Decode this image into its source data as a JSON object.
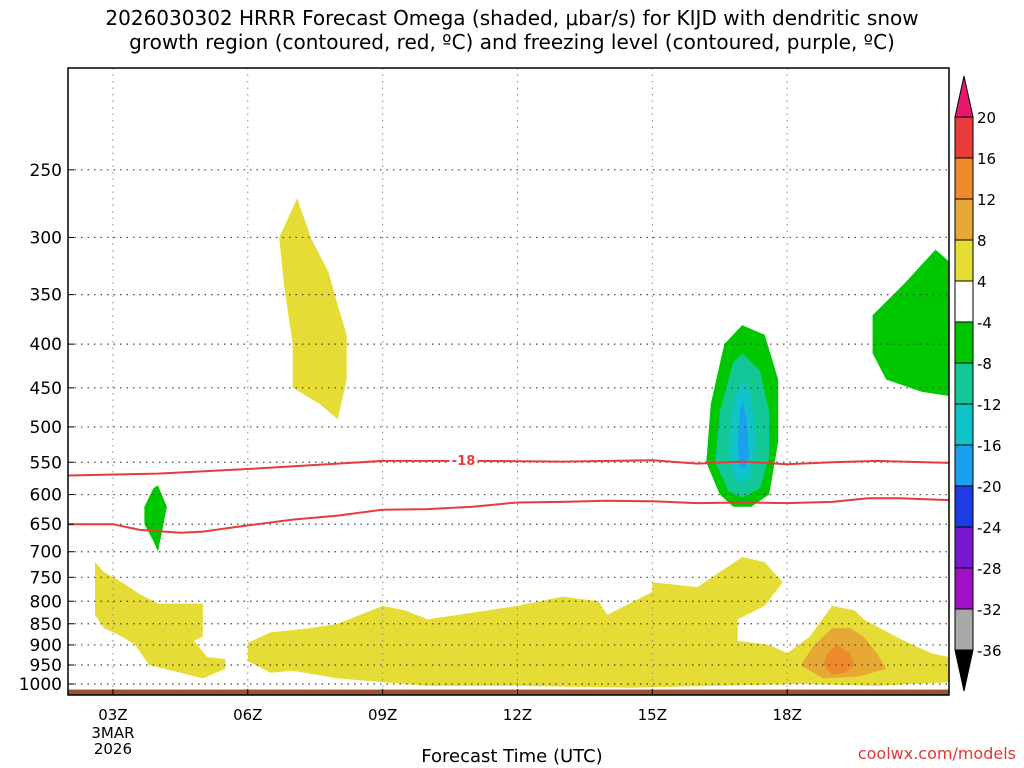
{
  "title": {
    "line1": "2026030302 HRRR Forecast Omega (shaded, μbar/s) for KIJD with dendritic snow",
    "line2": "growth region (contoured, red, ºC) and freezing level (contoured, purple, ºC)"
  },
  "xlabel": "Forecast Time (UTC)",
  "credit": "coolwx.com/models",
  "chart_data": {
    "type": "heatmap",
    "title": "2026030302 HRRR Forecast Omega (shaded, μbar/s) for KIJD with dendritic snow growth region (contoured, red, ºC) and freezing level (contoured, purple, ºC)",
    "xlabel": "Forecast Time (UTC)",
    "ylabel": "",
    "x_unit": "hours UTC on 3 Mar 2026",
    "xlim": [
      2,
      21.6
    ],
    "ylim": [
      1030,
      190
    ],
    "y_scale": "log-pressure (hPa)",
    "x_ticks": [
      {
        "value": 3,
        "label": "03Z",
        "sub": [
          "3MAR",
          "2026"
        ]
      },
      {
        "value": 6,
        "label": "06Z"
      },
      {
        "value": 9,
        "label": "09Z"
      },
      {
        "value": 12,
        "label": "12Z"
      },
      {
        "value": 15,
        "label": "15Z"
      },
      {
        "value": 18,
        "label": "18Z"
      }
    ],
    "y_ticks": [
      250,
      300,
      350,
      400,
      450,
      500,
      550,
      600,
      650,
      700,
      750,
      800,
      850,
      900,
      950,
      1000
    ],
    "grid": true,
    "colorbar": {
      "labels": [
        "20",
        "16",
        "12",
        "8",
        "4",
        "-4",
        "-8",
        "-12",
        "-16",
        "-20",
        "-24",
        "-28",
        "-32",
        "-36"
      ],
      "bins": [
        {
          "color": "#e8186e"
        },
        {
          "color": "#e83c3c"
        },
        {
          "color": "#ee8a2c"
        },
        {
          "color": "#e6aa34"
        },
        {
          "color": "#e6dc36"
        },
        {
          "color": "#ffffff"
        },
        {
          "color": "#00c800"
        },
        {
          "color": "#12c896"
        },
        {
          "color": "#0ec4c8"
        },
        {
          "color": "#1aa0f0"
        },
        {
          "color": "#1e3ce6"
        },
        {
          "color": "#7818d2"
        },
        {
          "color": "#a010c8"
        },
        {
          "color": "#a8a8a8"
        },
        {
          "color": "#000000"
        }
      ]
    },
    "omega_regions": [
      {
        "level": "4 to 8",
        "color": "#e6dc36",
        "points": [
          [
            7.1,
            270
          ],
          [
            7.4,
            300
          ],
          [
            7.8,
            330
          ],
          [
            8.0,
            360
          ],
          [
            8.2,
            390
          ],
          [
            8.2,
            440
          ],
          [
            8.0,
            490
          ],
          [
            7.6,
            470
          ],
          [
            7.0,
            450
          ],
          [
            7.0,
            400
          ],
          [
            6.8,
            340
          ],
          [
            6.7,
            300
          ]
        ]
      },
      {
        "level": "4 to 8",
        "color": "#e6dc36",
        "points": [
          [
            2.6,
            720
          ],
          [
            2.8,
            740
          ],
          [
            3.2,
            760
          ],
          [
            3.6,
            785
          ],
          [
            4.0,
            805
          ],
          [
            5.0,
            805
          ],
          [
            5.0,
            880
          ],
          [
            4.8,
            890
          ],
          [
            5.1,
            930
          ],
          [
            5.5,
            935
          ],
          [
            5.5,
            960
          ],
          [
            5.0,
            985
          ],
          [
            4.5,
            970
          ],
          [
            3.8,
            950
          ],
          [
            3.5,
            900
          ],
          [
            3.2,
            880
          ],
          [
            2.8,
            860
          ],
          [
            2.6,
            830
          ],
          [
            2.6,
            760
          ]
        ]
      },
      {
        "level": "4 to 8",
        "color": "#e6dc36",
        "points": [
          [
            6.0,
            895
          ],
          [
            6.5,
            870
          ],
          [
            7.4,
            860
          ],
          [
            8.0,
            850
          ],
          [
            9.0,
            810
          ],
          [
            9.5,
            820
          ],
          [
            10.0,
            840
          ],
          [
            12.0,
            810
          ],
          [
            13.0,
            790
          ],
          [
            13.8,
            800
          ],
          [
            14.0,
            830
          ],
          [
            15.0,
            780
          ],
          [
            15.0,
            760
          ],
          [
            16.0,
            770
          ],
          [
            17.0,
            710
          ],
          [
            17.5,
            720
          ],
          [
            17.9,
            760
          ],
          [
            17.5,
            810
          ],
          [
            16.9,
            840
          ],
          [
            16.9,
            890
          ],
          [
            17.6,
            900
          ],
          [
            18.0,
            920
          ],
          [
            18.5,
            880
          ],
          [
            19.0,
            810
          ],
          [
            19.5,
            820
          ],
          [
            19.7,
            840
          ],
          [
            20.6,
            890
          ],
          [
            21.2,
            920
          ],
          [
            21.6,
            930
          ],
          [
            21.6,
            995
          ],
          [
            20.0,
            1005
          ],
          [
            18.3,
            1000
          ],
          [
            14.5,
            1010
          ],
          [
            12.0,
            1005
          ],
          [
            10.0,
            1005
          ],
          [
            8.0,
            985
          ],
          [
            7.0,
            965
          ],
          [
            6.5,
            970
          ],
          [
            6.0,
            940
          ]
        ]
      },
      {
        "level": "8 to 12",
        "color": "#e6aa34",
        "points": [
          [
            18.3,
            950
          ],
          [
            18.6,
            900
          ],
          [
            19.0,
            860
          ],
          [
            19.4,
            860
          ],
          [
            19.7,
            880
          ],
          [
            20.0,
            920
          ],
          [
            20.2,
            960
          ],
          [
            19.6,
            980
          ],
          [
            18.8,
            985
          ]
        ]
      },
      {
        "level": "12 to 16",
        "color": "#ee8a2c",
        "points": [
          [
            18.8,
            950
          ],
          [
            18.9,
            920
          ],
          [
            19.1,
            900
          ],
          [
            19.4,
            920
          ],
          [
            19.5,
            950
          ],
          [
            19.3,
            970
          ],
          [
            19.0,
            975
          ]
        ]
      },
      {
        "level": "-4 to -8",
        "color": "#00c800",
        "points": [
          [
            3.7,
            620
          ],
          [
            3.9,
            590
          ],
          [
            4.0,
            585
          ],
          [
            4.2,
            620
          ],
          [
            4.1,
            660
          ],
          [
            4.0,
            700
          ],
          [
            3.9,
            680
          ],
          [
            3.7,
            650
          ]
        ]
      },
      {
        "level": "-4 to -8",
        "color": "#00c800",
        "points": [
          [
            16.2,
            550
          ],
          [
            16.3,
            470
          ],
          [
            16.6,
            400
          ],
          [
            17.0,
            380
          ],
          [
            17.5,
            390
          ],
          [
            17.8,
            440
          ],
          [
            17.8,
            520
          ],
          [
            17.6,
            600
          ],
          [
            17.2,
            620
          ],
          [
            16.8,
            620
          ],
          [
            16.5,
            600
          ]
        ]
      },
      {
        "level": "-8 to -12",
        "color": "#12c896",
        "points": [
          [
            16.4,
            550
          ],
          [
            16.5,
            480
          ],
          [
            16.8,
            420
          ],
          [
            17.0,
            410
          ],
          [
            17.4,
            430
          ],
          [
            17.6,
            480
          ],
          [
            17.6,
            540
          ],
          [
            17.4,
            590
          ],
          [
            17.0,
            605
          ],
          [
            16.7,
            595
          ]
        ]
      },
      {
        "level": "-12 to -16",
        "color": "#0ec4c8",
        "points": [
          [
            16.7,
            530
          ],
          [
            16.8,
            470
          ],
          [
            17.0,
            440
          ],
          [
            17.2,
            460
          ],
          [
            17.3,
            520
          ],
          [
            17.2,
            570
          ],
          [
            17.0,
            585
          ],
          [
            16.8,
            570
          ]
        ]
      },
      {
        "level": "-16 to -20",
        "color": "#1aa0f0",
        "points": [
          [
            16.9,
            530
          ],
          [
            16.95,
            480
          ],
          [
            17.0,
            465
          ],
          [
            17.1,
            490
          ],
          [
            17.15,
            540
          ],
          [
            17.05,
            560
          ],
          [
            16.95,
            555
          ]
        ]
      },
      {
        "level": "-4 to -8",
        "color": "#00c800",
        "points": [
          [
            21.6,
            320
          ],
          [
            21.3,
            310
          ],
          [
            20.6,
            340
          ],
          [
            19.9,
            370
          ],
          [
            19.9,
            410
          ],
          [
            20.2,
            440
          ],
          [
            21.0,
            455
          ],
          [
            21.6,
            460
          ]
        ]
      }
    ],
    "contours": [
      {
        "label": "-18",
        "label_at": [
          10.8,
          554
        ],
        "color": "#e83c3c",
        "points": [
          [
            2,
            570
          ],
          [
            4,
            567
          ],
          [
            6,
            560
          ],
          [
            8,
            552
          ],
          [
            9,
            548
          ],
          [
            10,
            548
          ],
          [
            11,
            548
          ],
          [
            13,
            549
          ],
          [
            15,
            547
          ],
          [
            16,
            552
          ],
          [
            17,
            549
          ],
          [
            18,
            553
          ],
          [
            19,
            550
          ],
          [
            20,
            548
          ],
          [
            21.6,
            551
          ]
        ]
      },
      {
        "label": "",
        "color": "#e83c3c",
        "points": [
          [
            2,
            650
          ],
          [
            3,
            650
          ],
          [
            3.6,
            660
          ],
          [
            4.5,
            665
          ],
          [
            5,
            663
          ],
          [
            6,
            652
          ],
          [
            7,
            642
          ],
          [
            8,
            635
          ],
          [
            9,
            625
          ],
          [
            10,
            624
          ],
          [
            11,
            620
          ],
          [
            12,
            613
          ],
          [
            13,
            612
          ],
          [
            14,
            610
          ],
          [
            15,
            611
          ],
          [
            16,
            614
          ],
          [
            17,
            613
          ],
          [
            18,
            614
          ],
          [
            19,
            612
          ],
          [
            19.8,
            606
          ],
          [
            20.5,
            606
          ],
          [
            21.6,
            609
          ]
        ]
      }
    ],
    "ground": {
      "from": 1015,
      "to": 1030,
      "color": "#9a5530"
    }
  }
}
